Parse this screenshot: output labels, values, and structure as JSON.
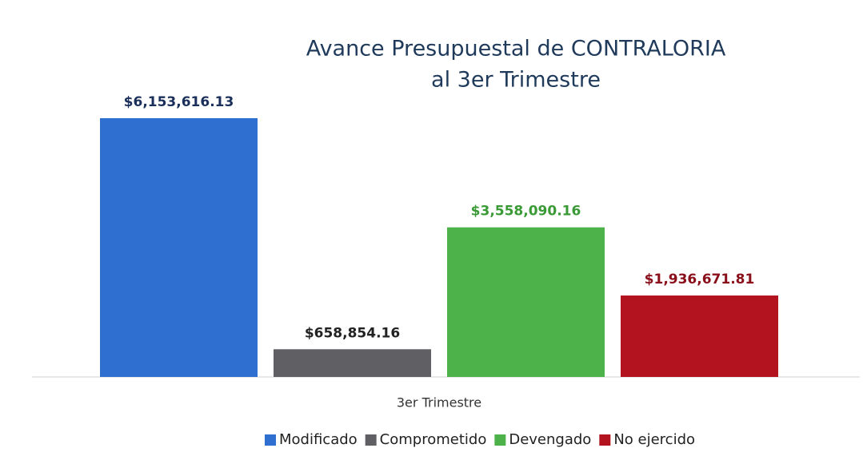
{
  "chart_data": {
    "type": "bar",
    "title": [
      "Avance Presupuestal de CONTRALORIA",
      "al 3er Trimestre"
    ],
    "categories": [
      "3er Trimestre"
    ],
    "series": [
      {
        "name": "Modificado",
        "color": "#2f6fd0",
        "label_color": "#1a2f5a",
        "values": [
          6153616.13
        ],
        "value_labels": [
          "$6,153,616.13"
        ]
      },
      {
        "name": "Comprometido",
        "color": "#5f5f64",
        "label_color": "#222222",
        "values": [
          658854.16
        ],
        "value_labels": [
          "$658,854.16"
        ]
      },
      {
        "name": "Devengado",
        "color": "#4db24a",
        "label_color": "#3a9a36",
        "values": [
          3558090.16
        ],
        "value_labels": [
          "$3,558,090.16"
        ]
      },
      {
        "name": "No ejercido",
        "color": "#b3121f",
        "label_color": "#8a0f1a",
        "values": [
          1936671.81
        ],
        "value_labels": [
          "$1,936,671.81"
        ]
      }
    ]
  }
}
